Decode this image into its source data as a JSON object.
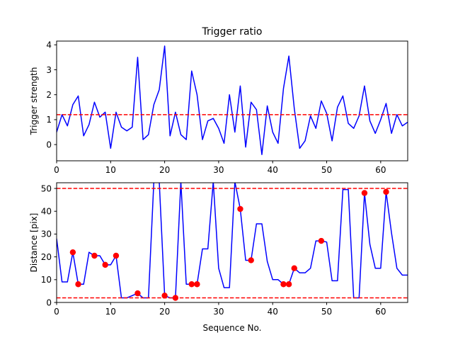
{
  "chart_data": [
    {
      "type": "line",
      "title": "Trigger ratio",
      "xlabel": "Sequence No.",
      "ylabel": "Trigger strength",
      "xlim": [
        0,
        65
      ],
      "ylim": [
        -0.65,
        4.15
      ],
      "xticks": [
        0,
        10,
        20,
        30,
        40,
        50,
        60
      ],
      "yticks": [
        0,
        1,
        2,
        3,
        4
      ],
      "series": [
        {
          "color": "#0000ff",
          "x": [
            0,
            1,
            2,
            3,
            4,
            5,
            6,
            7,
            8,
            9,
            10,
            11,
            12,
            13,
            14,
            15,
            16,
            17,
            18,
            19,
            20,
            21,
            22,
            23,
            24,
            25,
            26,
            27,
            28,
            29,
            30,
            31,
            32,
            33,
            34,
            35,
            36,
            37,
            38,
            39,
            40,
            41,
            42,
            43,
            44,
            45,
            46,
            47,
            48,
            49,
            50,
            51,
            52,
            53,
            54,
            55,
            56,
            57,
            58,
            59,
            60,
            61,
            62,
            63,
            64,
            65
          ],
          "values": [
            0.5,
            1.2,
            0.75,
            1.6,
            1.95,
            0.35,
            0.8,
            1.7,
            1.1,
            1.3,
            -0.15,
            1.3,
            0.7,
            0.55,
            0.7,
            3.5,
            0.2,
            0.4,
            1.6,
            2.2,
            3.95,
            0.35,
            1.3,
            0.4,
            0.2,
            2.95,
            2.0,
            0.2,
            0.95,
            1.05,
            0.65,
            0.05,
            2.0,
            0.5,
            2.35,
            -0.1,
            1.7,
            1.4,
            -0.4,
            1.55,
            0.5,
            0.05,
            2.25,
            3.55,
            1.45,
            -0.15,
            0.15,
            1.15,
            0.65,
            1.75,
            1.25,
            0.15,
            1.5,
            1.95,
            0.85,
            0.65,
            1.15,
            2.35,
            0.95,
            0.45,
            1.0,
            1.65,
            0.45,
            1.2,
            0.75,
            0.9
          ]
        }
      ],
      "hlines": [
        {
          "y": 1.2,
          "color": "#ff0000",
          "style": "dashed"
        }
      ]
    },
    {
      "type": "line",
      "title": "",
      "xlabel": "Sequence No.",
      "ylabel": "Distance [pix]",
      "xlim": [
        0,
        65
      ],
      "ylim": [
        0,
        52.5
      ],
      "xticks": [
        0,
        10,
        20,
        30,
        40,
        50,
        60
      ],
      "yticks": [
        0,
        10,
        20,
        30,
        40,
        50
      ],
      "series": [
        {
          "color": "#0000ff",
          "x": [
            0,
            1,
            2,
            3,
            4,
            5,
            6,
            7,
            8,
            9,
            10,
            11,
            12,
            13,
            14,
            15,
            16,
            17,
            18,
            19,
            20,
            21,
            22,
            23,
            24,
            25,
            26,
            27,
            28,
            29,
            30,
            31,
            32,
            33,
            34,
            35,
            36,
            37,
            38,
            39,
            40,
            41,
            42,
            43,
            44,
            45,
            46,
            47,
            48,
            49,
            50,
            51,
            52,
            53,
            54,
            55,
            56,
            57,
            58,
            59,
            60,
            61,
            62,
            63,
            64,
            65
          ],
          "values": [
            28,
            9,
            9,
            22,
            8,
            8,
            22,
            20.5,
            20.5,
            16.5,
            16.5,
            20.5,
            2,
            2,
            3,
            4,
            2,
            2,
            53,
            53,
            3,
            2,
            2,
            53,
            8,
            8,
            8,
            23.5,
            23.5,
            53,
            15,
            6.5,
            6.5,
            53,
            41,
            18.5,
            18.5,
            34.5,
            34.5,
            18,
            10,
            10,
            8,
            8,
            15,
            13,
            13,
            15,
            27,
            27,
            26.5,
            9.5,
            9.5,
            49.5,
            49.5,
            2,
            2,
            48,
            25.5,
            15,
            15,
            48.5,
            30.5,
            15,
            12,
            12
          ]
        }
      ],
      "markers": {
        "color": "#ff0000",
        "points": [
          [
            3,
            22
          ],
          [
            4,
            8
          ],
          [
            7,
            20.5
          ],
          [
            9,
            16.5
          ],
          [
            11,
            20.5
          ],
          [
            15,
            4
          ],
          [
            20,
            3
          ],
          [
            22,
            2
          ],
          [
            25,
            8
          ],
          [
            26,
            8
          ],
          [
            34,
            41
          ],
          [
            36,
            18.5
          ],
          [
            42,
            8
          ],
          [
            43,
            8
          ],
          [
            44,
            15
          ],
          [
            49,
            27
          ],
          [
            57,
            48
          ],
          [
            61,
            48.5
          ]
        ]
      },
      "hlines": [
        {
          "y": 50,
          "color": "#ff0000",
          "style": "dashed"
        },
        {
          "y": 2,
          "color": "#ff0000",
          "style": "dashed"
        }
      ]
    }
  ]
}
